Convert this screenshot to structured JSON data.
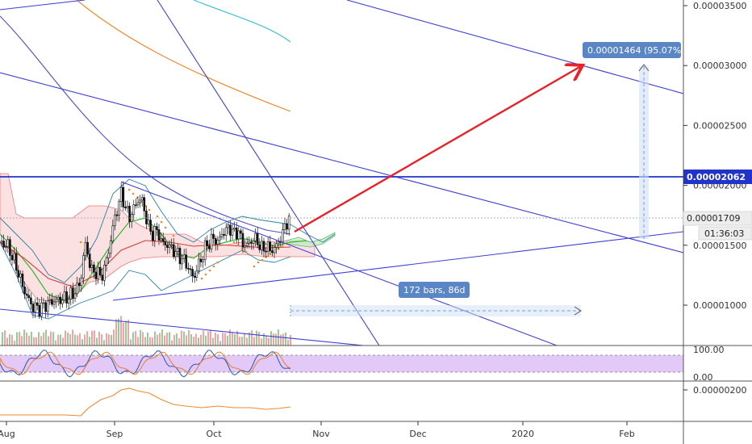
{
  "chart_data": {
    "type": "candlestick",
    "price_axis": {
      "ticks": [
        "0.00003500",
        "0.00003000",
        "0.00002500",
        "0.00002000",
        "0.00001500",
        "0.00001000"
      ],
      "tick_values": [
        3.5e-05,
        3e-05,
        2.5e-05,
        2e-05,
        1.5e-05,
        1e-05
      ],
      "range": [
        5.8e-06,
        3.59e-05
      ]
    },
    "time_axis": {
      "ticks": [
        "Aug",
        "Sep",
        "Oct",
        "Nov",
        "Dec",
        "2020",
        "Feb"
      ]
    },
    "price_tags": {
      "resistance_level": "0.00002062",
      "last_price": "0.00001709",
      "countdown": "01:36:03"
    },
    "annotations": {
      "projection_label": "0.00001464 (95.07%)",
      "range_label": "172 bars, 86d"
    },
    "stoch_rsi": {
      "ticks": [
        "100.00",
        "0.00"
      ],
      "band_upper": 80,
      "band_lower": 20
    },
    "oscillator": {
      "ticks": [
        "0.00000200"
      ]
    },
    "colors": {
      "up_candle": "#111111",
      "down_candle": "#111111",
      "projection_arrow": "#e8222a",
      "trendlines": "#3f3fd6",
      "resistance": "#2233cc",
      "rsi_band": "#e3c9f7",
      "oscillator_line": "#f08a2c",
      "tag_bg": "#5b86c6"
    }
  }
}
